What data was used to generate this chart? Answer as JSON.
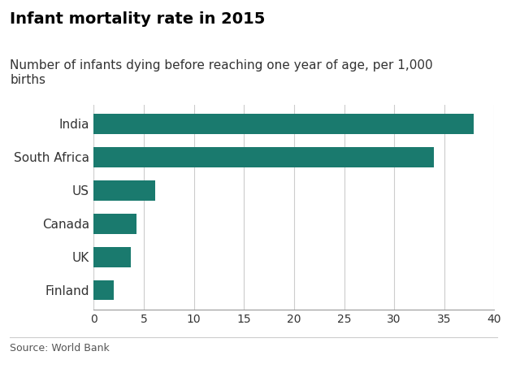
{
  "title": "Infant mortality rate in 2015",
  "subtitle": "Number of infants dying before reaching one year of age, per 1,000\nbirths",
  "source": "Source: World Bank",
  "categories": [
    "Finland",
    "UK",
    "Canada",
    "US",
    "South Africa",
    "India"
  ],
  "values": [
    2.0,
    3.7,
    4.3,
    6.1,
    34.0,
    37.9
  ],
  "bar_color": "#1a7a6e",
  "background_color": "#ffffff",
  "xlim": [
    0,
    40
  ],
  "xticks": [
    0,
    5,
    10,
    15,
    20,
    25,
    30,
    35,
    40
  ],
  "grid_color": "#cccccc",
  "title_fontsize": 14,
  "subtitle_fontsize": 11,
  "tick_fontsize": 10,
  "label_fontsize": 11,
  "source_fontsize": 9
}
